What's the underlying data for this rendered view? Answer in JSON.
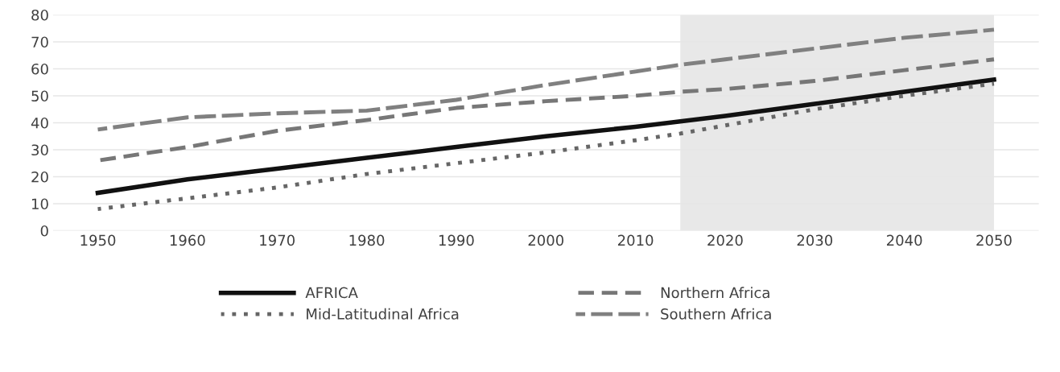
{
  "chart_data": {
    "type": "line",
    "x": [
      1950,
      1960,
      1970,
      1980,
      1990,
      2000,
      2010,
      2015,
      2020,
      2030,
      2040,
      2050
    ],
    "series": [
      {
        "name": "AFRICA",
        "color": "#111111",
        "line_style": "solid",
        "values": [
          14,
          19,
          23,
          27,
          31,
          35,
          38.5,
          40.5,
          42.5,
          47,
          51.5,
          56
        ]
      },
      {
        "name": "Northern Africa",
        "color": "#777777",
        "line_style": "dashed",
        "values": [
          26,
          31,
          37,
          41,
          45.5,
          48,
          50,
          51.5,
          52.5,
          55.5,
          59.5,
          63.5
        ]
      },
      {
        "name": "Mid-Latitudinal Africa",
        "color": "#666666",
        "line_style": "dotted",
        "values": [
          8,
          12,
          16,
          21,
          25,
          29,
          33.5,
          36,
          39,
          45,
          50,
          54.5
        ]
      },
      {
        "name": "Southern Africa",
        "color": "#808080",
        "line_style": "longdash",
        "values": [
          37.5,
          42,
          43.5,
          44.5,
          48.5,
          54,
          59,
          61.5,
          63.5,
          67.5,
          71.5,
          74.5
        ]
      }
    ],
    "xlim": [
      1945,
      2055
    ],
    "xticks": [
      1950,
      1960,
      1970,
      1980,
      1990,
      2000,
      2010,
      2020,
      2030,
      2040,
      2050
    ],
    "ylim": [
      0,
      80
    ],
    "yticks": [
      0,
      10,
      20,
      30,
      40,
      50,
      60,
      70,
      80
    ],
    "bands": [
      {
        "axis": "x",
        "from": 2015,
        "to": 2050,
        "color": "#e8e8e8"
      }
    ],
    "grid": "y",
    "legend": "bottom"
  }
}
